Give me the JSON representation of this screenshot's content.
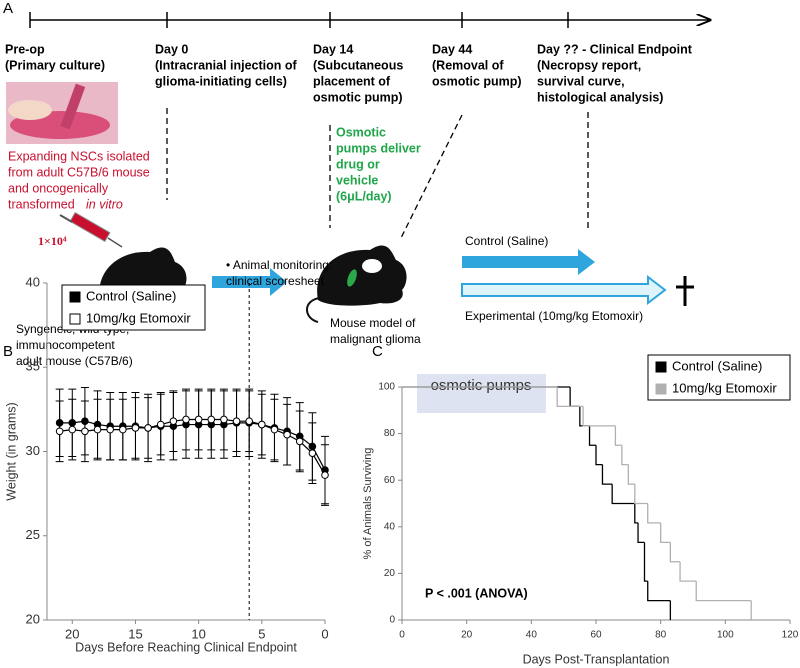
{
  "panel_a": {
    "letter": "A",
    "timepoints": [
      {
        "lines": [
          "Pre-op",
          "(Primary culture)"
        ]
      },
      {
        "lines": [
          "Day 0",
          "(Intracranial injection of",
          "glioma-initiating cells)"
        ]
      },
      {
        "lines": [
          "Day 14",
          "(Subcutaneous",
          "placement of",
          "osmotic pump)"
        ]
      },
      {
        "lines": [
          "Day 44",
          "(Removal of",
          "osmotic pump)"
        ]
      },
      {
        "lines": [
          "Day ?? - Clinical Endpoint",
          "(Necropsy report,",
          "survival curve,",
          "histological analysis)"
        ]
      }
    ],
    "culture_note": [
      "Expanding NSCs isolated",
      "from adult C57B/6 mouse",
      "and oncogenically",
      "transformed"
    ],
    "culture_note_italic": "in vitro",
    "cell_count": "1×10⁴",
    "pump_note": [
      "Osmotic",
      "pumps deliver",
      "drug or",
      "vehicle",
      "(6μL/day)"
    ],
    "monitoring": [
      "• Animal monitoring:",
      "clinical scoresheet"
    ],
    "host_label": [
      "Syngeneic, wild-type,",
      "immunocompetent",
      "adult mouse (C57B/6)"
    ],
    "model_label": [
      "Mouse model of",
      "malignant glioma"
    ],
    "control_arm": "Control (Saline)",
    "experimental_arm": "Experimental (10mg/kg Etomoxir)"
  },
  "chart_data": [
    {
      "type": "line",
      "panel": "B",
      "x": [
        21,
        20,
        19,
        18,
        17,
        16,
        15,
        14,
        13,
        12,
        11,
        10,
        9,
        8,
        7,
        6,
        5,
        4,
        3,
        2,
        1,
        0
      ],
      "series": [
        {
          "name": "Control (Saline)",
          "color": "#000000",
          "marker": "filled",
          "values": [
            31.7,
            31.7,
            31.8,
            31.6,
            31.5,
            31.5,
            31.5,
            31.4,
            31.5,
            31.5,
            31.6,
            31.6,
            31.6,
            31.6,
            31.7,
            31.7,
            31.6,
            31.4,
            31.2,
            30.9,
            30.3,
            28.9
          ],
          "errors": [
            2,
            2,
            2,
            2,
            2,
            2,
            2,
            2,
            2,
            2,
            2,
            2,
            2,
            2,
            2,
            2,
            2,
            2,
            2,
            2,
            2,
            2
          ]
        },
        {
          "name": "10mg/kg Etomoxir",
          "color": "#000000",
          "marker": "open",
          "values": [
            31.2,
            31.3,
            31.2,
            31.3,
            31.3,
            31.3,
            31.4,
            31.4,
            31.6,
            31.8,
            31.9,
            31.9,
            31.9,
            31.9,
            31.8,
            31.8,
            31.6,
            31.3,
            31.0,
            30.6,
            29.9,
            28.6
          ],
          "errors": [
            1.8,
            1.8,
            1.8,
            1.8,
            1.8,
            1.8,
            1.8,
            1.8,
            1.8,
            1.8,
            1.8,
            1.8,
            1.8,
            1.8,
            1.8,
            1.8,
            1.8,
            1.8,
            1.8,
            1.8,
            1.8,
            1.8
          ]
        }
      ],
      "xlim": [
        22,
        0
      ],
      "xticks": [
        20,
        15,
        10,
        5,
        0
      ],
      "ylim": [
        20,
        40
      ],
      "yticks": [
        20,
        25,
        30,
        35,
        40
      ],
      "vline": 6,
      "x_label": "Days Before Reaching Clinical Endpoint",
      "y_label": "Weight (in grams)",
      "legend": "upper left",
      "grid": false
    },
    {
      "type": "step",
      "panel": "C",
      "series": [
        {
          "name": "Control (Saline)",
          "color": "#000000",
          "x": [
            0,
            52,
            55,
            58,
            60,
            62,
            65,
            72,
            73,
            75,
            76,
            83
          ],
          "values": [
            100,
            91.7,
            83.3,
            75,
            66.7,
            58.3,
            50,
            41.7,
            33.3,
            16.7,
            8.3,
            0
          ]
        },
        {
          "name": "10mg/kg Etomoxir",
          "color": "#b0b0b0",
          "x": [
            0,
            48,
            56,
            66,
            68,
            70,
            72,
            76,
            80,
            83,
            86,
            91,
            108
          ],
          "values": [
            100,
            91.7,
            83.3,
            75,
            66.7,
            58.3,
            50,
            41.7,
            33.3,
            25,
            16.7,
            8.3,
            0
          ]
        }
      ],
      "xlim": [
        0,
        120
      ],
      "xticks": [
        0,
        20,
        40,
        60,
        80,
        100,
        120
      ],
      "ylim": [
        0,
        100
      ],
      "yticks": [
        0,
        20,
        40,
        60,
        80,
        100
      ],
      "x_label": "Days Post-Transplantation",
      "y_label": "% of Animals Surviving",
      "annotation": "osmotic pumps",
      "stat_note": "P < .001 (ANOVA)",
      "legend": "upper right",
      "grid": false
    }
  ]
}
